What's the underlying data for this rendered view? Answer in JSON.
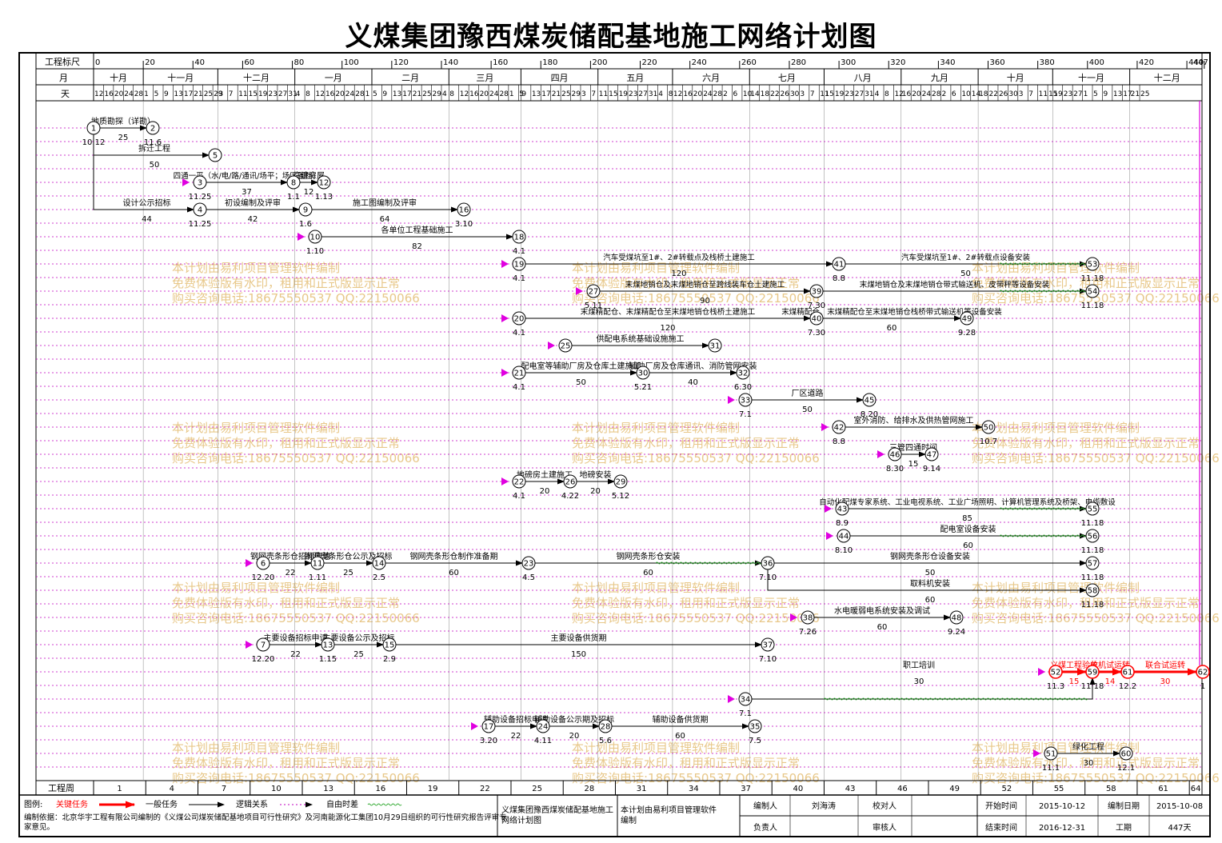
{
  "title": "义煤集团豫西煤炭储配基地施工网络计划图",
  "ruler": {
    "label": "工程标尺",
    "ticks": [
      "0",
      "20",
      "40",
      "60",
      "80",
      "100",
      "120",
      "140",
      "160",
      "180",
      "200",
      "220",
      "240",
      "260",
      "280",
      "300",
      "320",
      "340",
      "360",
      "380",
      "400",
      "420",
      "440",
      "447"
    ]
  },
  "months": {
    "label": "月",
    "items": [
      "十月",
      "十一月",
      "十二月",
      "一月",
      "二月",
      "三月",
      "四月",
      "五月",
      "六月",
      "七月",
      "八月",
      "九月",
      "十月",
      "十一月",
      "十二月"
    ]
  },
  "days": {
    "label": "天",
    "items": [
      "12",
      "16",
      "20",
      "24",
      "28",
      "1",
      "5",
      "9",
      "13",
      "17",
      "21",
      "25",
      "29",
      "3",
      "7",
      "11",
      "15",
      "19",
      "23",
      "27",
      "31",
      "4",
      "8",
      "12",
      "16",
      "20",
      "24",
      "28",
      "1",
      "5",
      "9",
      "13",
      "17",
      "21",
      "25",
      "29",
      "4",
      "8",
      "12",
      "16",
      "20",
      "24",
      "28",
      "1",
      "5",
      "9",
      "13",
      "17",
      "21",
      "25",
      "29",
      "3",
      "7",
      "11",
      "15",
      "19",
      "23",
      "27",
      "31",
      "4",
      "8",
      "12",
      "16",
      "20",
      "24",
      "28",
      "2",
      "6",
      "10",
      "14",
      "18",
      "22",
      "26",
      "30",
      "3",
      "7",
      "11",
      "15",
      "19",
      "23",
      "27",
      "31",
      "4",
      "8",
      "12",
      "16",
      "20",
      "24",
      "28",
      "2",
      "6",
      "10",
      "14",
      "18",
      "22",
      "26",
      "30",
      "3",
      "7",
      "11",
      "15",
      "19",
      "23",
      "27",
      "1",
      "5",
      "9",
      "13",
      "17",
      "21",
      "25"
    ]
  },
  "weeks": {
    "label": "工程周",
    "items": [
      "1",
      "4",
      "7",
      "10",
      "13",
      "16",
      "19",
      "22",
      "25",
      "28",
      "31",
      "34",
      "37",
      "40",
      "43",
      "46",
      "49",
      "52",
      "55",
      "58",
      "61",
      "64"
    ]
  },
  "nodes": [
    {
      "id": "1",
      "date": "10.12"
    },
    {
      "id": "2",
      "date": "11.6"
    },
    {
      "id": "3",
      "date": "11.25"
    },
    {
      "id": "4",
      "date": "11.25"
    },
    {
      "id": "5",
      "date": ""
    },
    {
      "id": "6",
      "date": "12.20"
    },
    {
      "id": "7",
      "date": "12.20"
    },
    {
      "id": "8",
      "date": "1.1"
    },
    {
      "id": "9",
      "date": "1.6"
    },
    {
      "id": "10",
      "date": "1.10"
    },
    {
      "id": "11",
      "date": "1.11"
    },
    {
      "id": "12",
      "date": "1.13"
    },
    {
      "id": "13",
      "date": "1.15"
    },
    {
      "id": "14",
      "date": "2.5"
    },
    {
      "id": "15",
      "date": "2.9"
    },
    {
      "id": "16",
      "date": "3.10"
    },
    {
      "id": "17",
      "date": "3.20"
    },
    {
      "id": "18",
      "date": "4.1"
    },
    {
      "id": "19",
      "date": "4.1"
    },
    {
      "id": "20",
      "date": "4.1"
    },
    {
      "id": "21",
      "date": "4.1"
    },
    {
      "id": "22",
      "date": "4.1"
    },
    {
      "id": "23",
      "date": "4.5"
    },
    {
      "id": "24",
      "date": "4.11"
    },
    {
      "id": "25",
      "date": ""
    },
    {
      "id": "26",
      "date": "4.22"
    },
    {
      "id": "27",
      "date": "5.11"
    },
    {
      "id": "28",
      "date": "5.6"
    },
    {
      "id": "29",
      "date": "5.12"
    },
    {
      "id": "30",
      "date": "5.21"
    },
    {
      "id": "31",
      "date": ""
    },
    {
      "id": "32",
      "date": "6.30"
    },
    {
      "id": "33",
      "date": "7.1"
    },
    {
      "id": "34",
      "date": "7.1"
    },
    {
      "id": "35",
      "date": "7.5"
    },
    {
      "id": "36",
      "date": "7.10"
    },
    {
      "id": "37",
      "date": "7.10"
    },
    {
      "id": "38",
      "date": "7.26"
    },
    {
      "id": "39",
      "date": "7.30"
    },
    {
      "id": "40",
      "date": "7.30"
    },
    {
      "id": "41",
      "date": "8.8"
    },
    {
      "id": "42",
      "date": "8.8"
    },
    {
      "id": "43",
      "date": "8.9"
    },
    {
      "id": "44",
      "date": "8.10"
    },
    {
      "id": "45",
      "date": "8.20"
    },
    {
      "id": "46",
      "date": "8.30"
    },
    {
      "id": "47",
      "date": "9.14"
    },
    {
      "id": "48",
      "date": "9.24"
    },
    {
      "id": "49",
      "date": "9.28"
    },
    {
      "id": "50",
      "date": "10.7"
    },
    {
      "id": "51",
      "date": "11.1"
    },
    {
      "id": "52",
      "date": "11.3"
    },
    {
      "id": "53",
      "date": "11.18"
    },
    {
      "id": "54",
      "date": "11.18"
    },
    {
      "id": "55",
      "date": "11.18"
    },
    {
      "id": "56",
      "date": "11.18"
    },
    {
      "id": "57",
      "date": "11.18"
    },
    {
      "id": "58",
      "date": "11.18"
    },
    {
      "id": "59",
      "date": "11.18"
    },
    {
      "id": "60",
      "date": "12.1"
    },
    {
      "id": "61",
      "date": "12.2"
    },
    {
      "id": "62",
      "date": "1"
    }
  ],
  "tasks": [
    {
      "from": "1",
      "to": "2",
      "name": "地质勘探（详勘）",
      "dur": "25"
    },
    {
      "from": "1",
      "to": "5",
      "name": "拆迁工程",
      "dur": "50"
    },
    {
      "from": "3",
      "to": "8",
      "name": "四通一平（水/电/路/通讯/场平；场区围挡）",
      "dur": "37"
    },
    {
      "from": "8",
      "to": "12",
      "name": "临建房屋",
      "dur": "12"
    },
    {
      "from": "1",
      "to": "4",
      "name": "设计公示招标",
      "dur": "44"
    },
    {
      "from": "4",
      "to": "9",
      "name": "初设编制及评审",
      "dur": "42"
    },
    {
      "from": "9",
      "to": "16",
      "name": "施工图编制及评审",
      "dur": "64"
    },
    {
      "from": "10",
      "to": "18",
      "name": "各单位工程基础施工",
      "dur": "82"
    },
    {
      "from": "19",
      "to": "41",
      "name": "汽车受煤坑至1#、2#转载点及栈桥土建施工",
      "dur": "120"
    },
    {
      "from": "41",
      "to": "53",
      "name": "汽车受煤坑至1#、2#转载点设备安装",
      "dur": "50"
    },
    {
      "from": "27",
      "to": "39",
      "name": "末煤地销仓及末煤地销仓至跨线装车仓土建施工",
      "dur": "90"
    },
    {
      "from": "39",
      "to": "54",
      "name": "末煤地销仓及末煤地销仓带式输送机、皮带秤等设备安装",
      "dur": ""
    },
    {
      "from": "20",
      "to": "40",
      "name": "末煤精配仓、末煤精配仓至末煤地销仓栈桥土建施工",
      "dur": "120"
    },
    {
      "from": "40",
      "to": "49",
      "name": "末煤精配仓、末煤精配仓至末煤地销仓栈桥带式输送机等设备安装",
      "dur": "60"
    },
    {
      "from": "25",
      "to": "31",
      "name": "供配电系统基础设施施工",
      "dur": ""
    },
    {
      "from": "21",
      "to": "30",
      "name": "配电室等辅助厂房及仓库土建施工",
      "dur": "50"
    },
    {
      "from": "30",
      "to": "32",
      "name": "辅助厂房及仓库通讯、消防管网安装",
      "dur": "40"
    },
    {
      "from": "33",
      "to": "45",
      "name": "厂区道路",
      "dur": "50"
    },
    {
      "from": "42",
      "to": "50",
      "name": "室外消防、给排水及供热管网施工",
      "dur": ""
    },
    {
      "from": "46",
      "to": "47",
      "name": "三管四通时间",
      "dur": "15"
    },
    {
      "from": "22",
      "to": "26",
      "name": "地磅房土建施工",
      "dur": "20"
    },
    {
      "from": "26",
      "to": "29",
      "name": "地磅安装",
      "dur": "20"
    },
    {
      "from": "43",
      "to": "55",
      "name": "自动化配煤专家系统、工业电视系统、工业广场照明、计算机管理系统及桥架、电缆敷设",
      "dur": "85"
    },
    {
      "from": "44",
      "to": "56",
      "name": "配电室设备安装",
      "dur": "60"
    },
    {
      "from": "6",
      "to": "11",
      "name": "钢网壳条形仓招标申请",
      "dur": "22"
    },
    {
      "from": "11",
      "to": "14",
      "name": "钢网壳条形仓公示及招标",
      "dur": "25"
    },
    {
      "from": "14",
      "to": "23",
      "name": "钢网壳条形仓制作准备期",
      "dur": "60"
    },
    {
      "from": "23",
      "to": "36",
      "name": "钢网壳条形仓安装",
      "dur": "60"
    },
    {
      "from": "36",
      "to": "57",
      "name": "钢网壳条形仓设备安装",
      "dur": "50"
    },
    {
      "from": "36",
      "to": "58",
      "name": "取料机安装",
      "dur": "60"
    },
    {
      "from": "38",
      "to": "48",
      "name": "水电暖弱电系统安装及调试",
      "dur": "60"
    },
    {
      "from": "7",
      "to": "13",
      "name": "主要设备招标申请",
      "dur": "22"
    },
    {
      "from": "13",
      "to": "15",
      "name": "主要设备公示及招标",
      "dur": "25"
    },
    {
      "from": "15",
      "to": "37",
      "name": "主要设备供货期",
      "dur": "150"
    },
    {
      "from": "52",
      "to": "59",
      "name": "义煤工程验收",
      "dur": "15"
    },
    {
      "from": "59",
      "to": "61",
      "name": "单机试运转",
      "dur": "14"
    },
    {
      "from": "61",
      "to": "62",
      "name": "联合试运转",
      "dur": "30"
    },
    {
      "from": "34",
      "to": "59",
      "name": "职工培训",
      "dur": "30"
    },
    {
      "from": "17",
      "to": "24",
      "name": "辅助设备招标申请",
      "dur": "22"
    },
    {
      "from": "24",
      "to": "28",
      "name": "辅助设备公示期及招标",
      "dur": "20"
    },
    {
      "from": "28",
      "to": "35",
      "name": "辅助设备供货期",
      "dur": "60"
    },
    {
      "from": "51",
      "to": "60",
      "name": "绿化工程",
      "dur": "30"
    }
  ],
  "watermark": {
    "line1": "本计划由易利项目管理软件编制",
    "line2": "免费体验版有水印，租用和正式版显示正常",
    "line3": "购买咨询电话:18675550537 QQ:22150066"
  },
  "legend": {
    "label": "图例:",
    "critical": "关键任务",
    "normal": "一般任务",
    "logic": "逻辑关系",
    "float": "自由时差"
  },
  "basis": "编制依据：北京华宇工程有限公司编制的《义煤公司煤炭储配基地项目可行性研究》及河南能源化工集团10月29日组织的可行性研究报告评审专家意见。",
  "footer": {
    "project_name": "义煤集团豫西煤炭储配基地施工网络计划图",
    "software": "本计划由易利项目管理软件编制",
    "prepared_by_label": "编制人",
    "prepared_by": "刘海涛",
    "checked_by_label": "校对人",
    "checked_by": "",
    "responsible_label": "负责人",
    "responsible": "",
    "reviewer_label": "审核人",
    "reviewer": "",
    "start_label": "开始时间",
    "start": "2015-10-12",
    "end_label": "结束时间",
    "end": "2016-12-31",
    "date_label": "编制日期",
    "date": "2015-10-08",
    "period_label": "工期",
    "period": "447天"
  }
}
